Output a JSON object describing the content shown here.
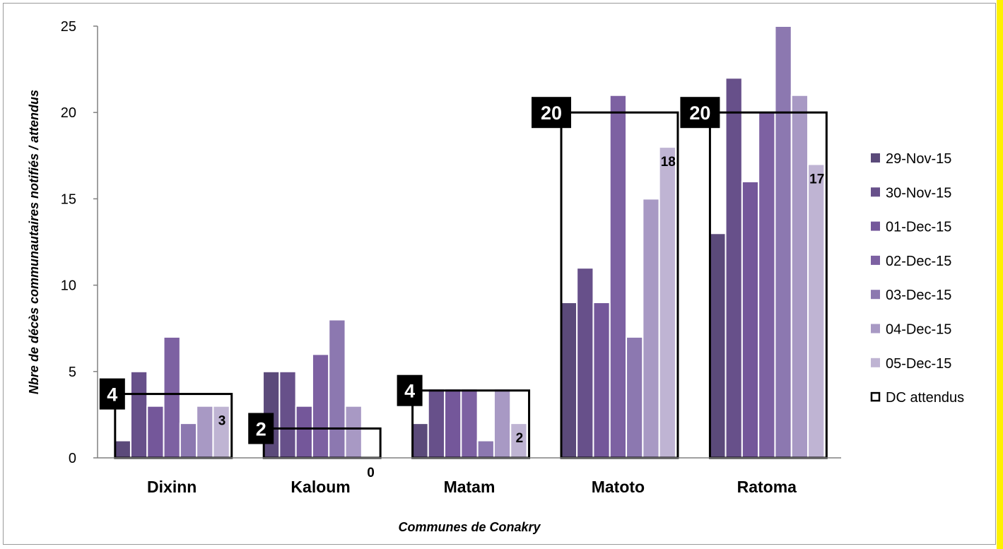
{
  "chart_data": {
    "type": "bar",
    "xlabel": "Communes de Conakry",
    "ylabel": "Nbre de décès communautaires notifiés / attendus",
    "ylim": [
      0,
      25
    ],
    "yticks": [
      0,
      5,
      10,
      15,
      20,
      25
    ],
    "categories": [
      "Dixinn",
      "Kaloum",
      "Matam",
      "Matoto",
      "Ratoma"
    ],
    "series": [
      {
        "name": "29-Nov-15",
        "color": "#5b4a7a",
        "values": [
          1,
          5,
          2,
          9,
          13
        ]
      },
      {
        "name": "30-Nov-15",
        "color": "#67508a",
        "values": [
          5,
          5,
          4,
          11,
          22
        ]
      },
      {
        "name": "01-Dec-15",
        "color": "#74579a",
        "values": [
          3,
          3,
          4,
          9,
          16
        ]
      },
      {
        "name": "02-Dec-15",
        "color": "#7d61a2",
        "values": [
          7,
          6,
          4,
          21,
          20
        ]
      },
      {
        "name": "03-Dec-15",
        "color": "#8c78b0",
        "values": [
          2,
          8,
          1,
          7,
          25
        ]
      },
      {
        "name": "04-Dec-15",
        "color": "#a899c4",
        "values": [
          3,
          3,
          4,
          15,
          21
        ]
      },
      {
        "name": "05-Dec-15",
        "color": "#bfb4d3",
        "values": [
          3,
          0,
          2,
          18,
          17
        ]
      }
    ],
    "expected": {
      "name": "DC attendus",
      "values": [
        3.7,
        1.7,
        3.9,
        20,
        20
      ],
      "labels": [
        "4",
        "2",
        "4",
        "20",
        "20"
      ]
    },
    "data_labels": [
      "3",
      "0",
      "2",
      "18",
      "17"
    ],
    "legend_position": "right",
    "grid": false
  }
}
